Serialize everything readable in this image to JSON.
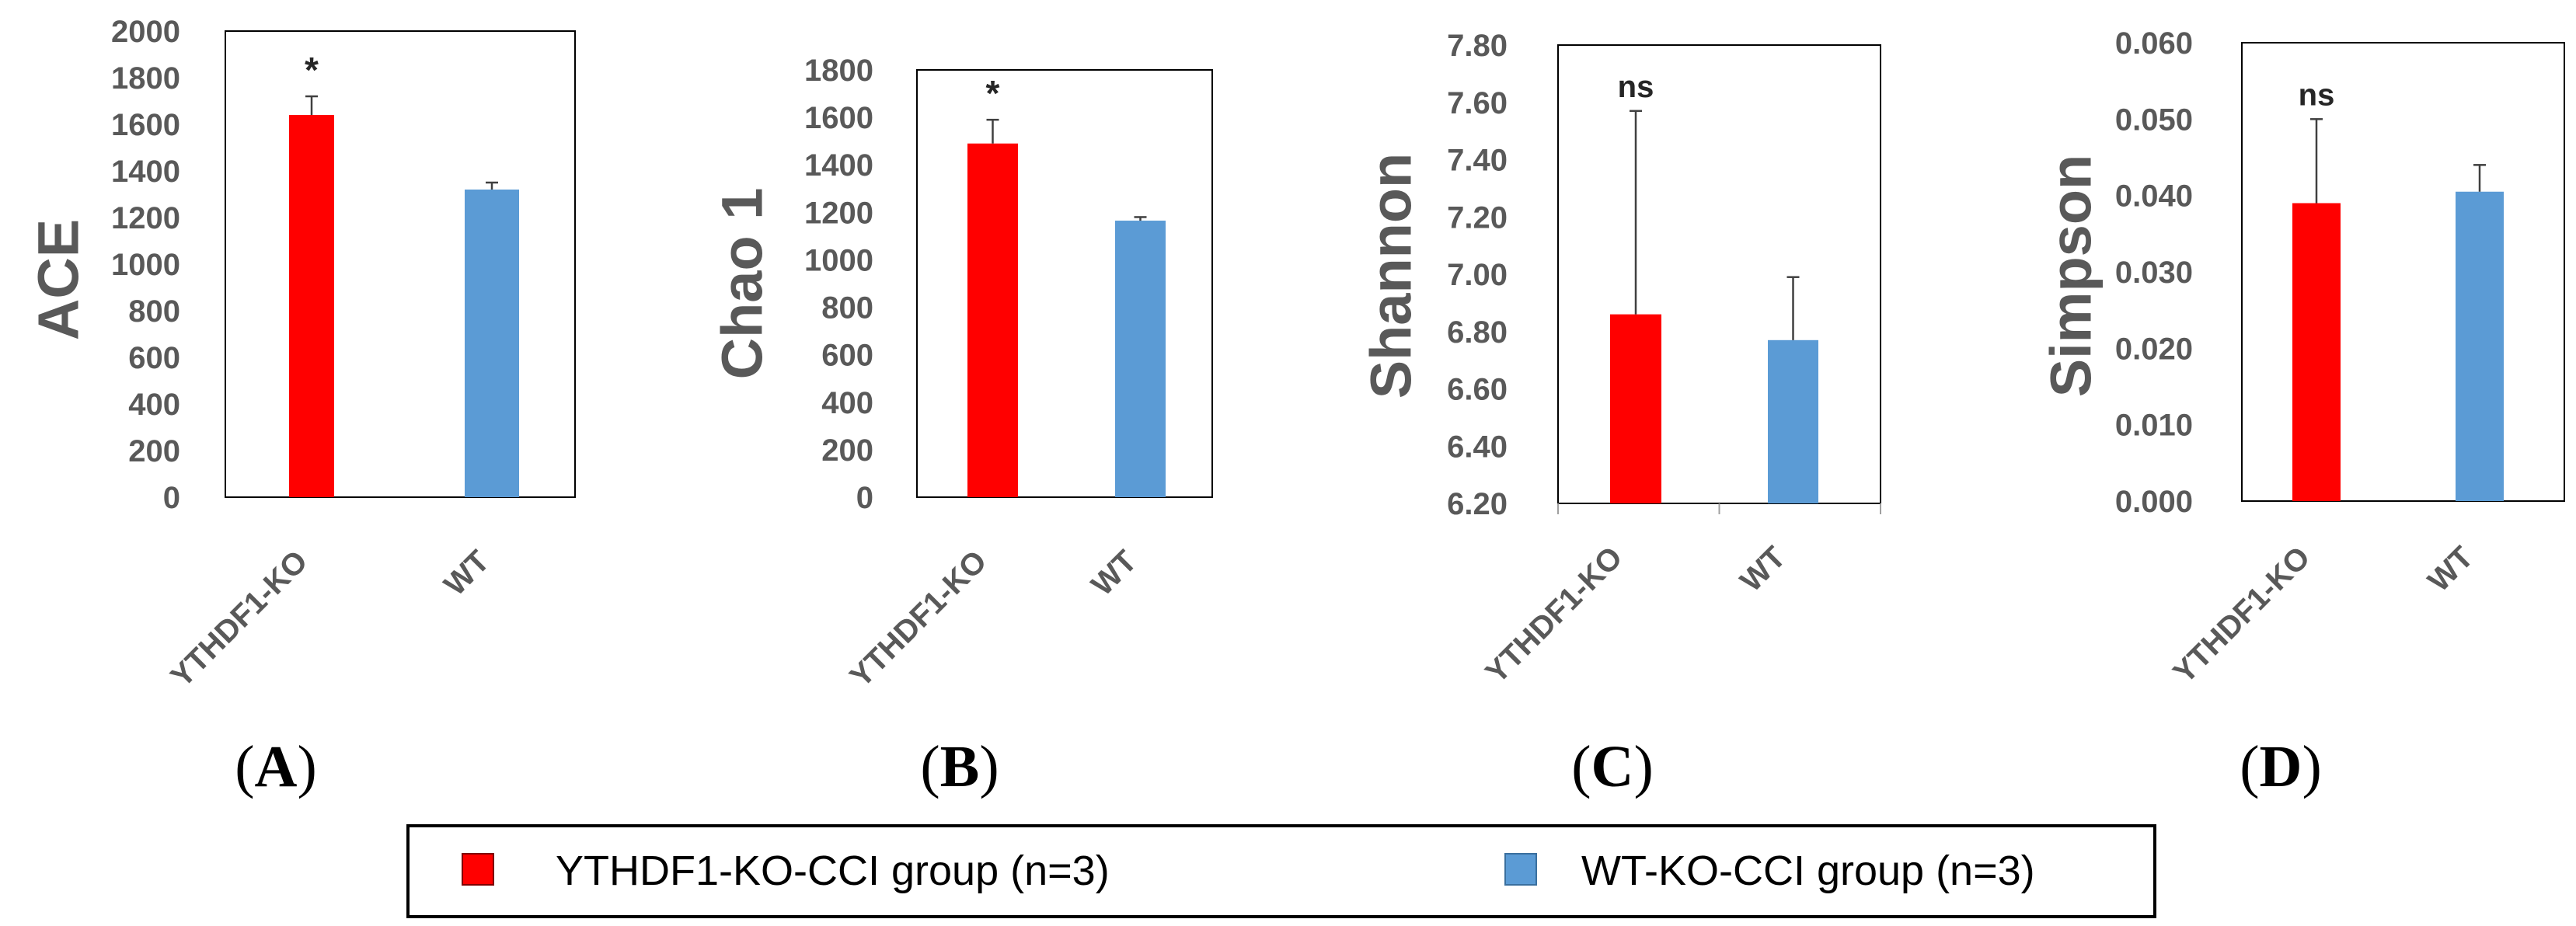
{
  "chart_data": [
    {
      "type": "bar",
      "panel": "A",
      "ylabel": "ACE",
      "categories": [
        "YTHDF1-KO",
        "WT"
      ],
      "values": [
        1640,
        1320
      ],
      "errors": [
        80,
        30
      ],
      "significance": "*",
      "ylim": [
        0,
        2000
      ],
      "yticks": [
        "0",
        "200",
        "400",
        "600",
        "800",
        "1000",
        "1200",
        "1400",
        "1600",
        "1800",
        "2000"
      ]
    },
    {
      "type": "bar",
      "panel": "B",
      "ylabel": "Chao 1",
      "categories": [
        "YTHDF1-KO",
        "WT"
      ],
      "values": [
        1490,
        1165
      ],
      "errors": [
        100,
        15
      ],
      "significance": "*",
      "ylim": [
        0,
        1800
      ],
      "yticks": [
        "0",
        "200",
        "400",
        "600",
        "800",
        "1000",
        "1200",
        "1400",
        "1600",
        "1800"
      ]
    },
    {
      "type": "bar",
      "panel": "C",
      "ylabel": "Shannon",
      "categories": [
        "YTHDF1-KO",
        "WT"
      ],
      "values": [
        6.86,
        6.77
      ],
      "errors": [
        0.71,
        0.22
      ],
      "significance": "ns",
      "ylim": [
        6.2,
        7.8
      ],
      "yticks": [
        "6.20",
        "6.40",
        "6.60",
        "6.80",
        "7.00",
        "7.20",
        "7.40",
        "7.60",
        "7.80"
      ]
    },
    {
      "type": "bar",
      "panel": "D",
      "ylabel": "Simpson",
      "categories": [
        "YTHDF1-KO",
        "WT"
      ],
      "values": [
        0.039,
        0.0405
      ],
      "errors": [
        0.011,
        0.0035
      ],
      "significance": "ns",
      "ylim": [
        0,
        0.06
      ],
      "yticks": [
        "0.000",
        "0.010",
        "0.020",
        "0.030",
        "0.040",
        "0.050",
        "0.060"
      ]
    }
  ],
  "panel_labels": [
    {
      "open": "(",
      "letter": "A",
      "close": ")"
    },
    {
      "open": "(",
      "letter": "B",
      "close": ")"
    },
    {
      "open": "(",
      "letter": "C",
      "close": ")"
    },
    {
      "open": "(",
      "letter": "D",
      "close": ")"
    }
  ],
  "legend": [
    {
      "label": "YTHDF1-KO-CCI group (n=3)",
      "color": "#ff0000"
    },
    {
      "label": "WT-KO-CCI group (n=3)",
      "color": "#5b9bd5"
    }
  ],
  "colors": {
    "ko": "#ff0000",
    "wt": "#5b9bd5",
    "axis": "#595959",
    "frame": "#000000"
  }
}
